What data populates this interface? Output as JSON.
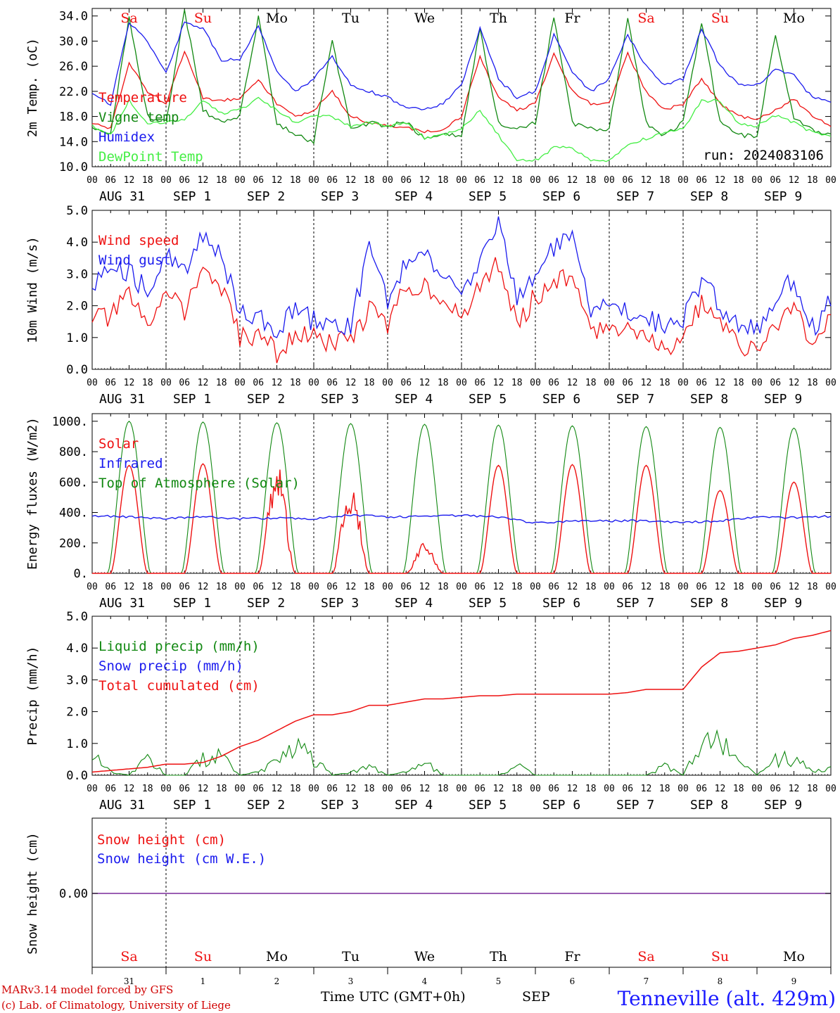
{
  "colors": {
    "red": "#ee1111",
    "blue": "#1a1aee",
    "green": "#118811",
    "lightgreen": "#44ee44",
    "weekend": "#ee1111",
    "weekday": "#000000",
    "purple": "#7a2a9a"
  },
  "x_axis": {
    "hours": [
      "00",
      "06",
      "12",
      "18"
    ],
    "last_hour": "00",
    "dates": [
      "AUG 31",
      "SEP  1",
      "SEP  2",
      "SEP  3",
      "SEP  4",
      "SEP  5",
      "SEP  6",
      "SEP  7",
      "SEP  8",
      "SEP  9"
    ],
    "weekdays": [
      "Sa",
      "Su",
      "Mo",
      "Tu",
      "We",
      "Th",
      "Fr",
      "Sa",
      "Su",
      "Mo"
    ],
    "weekend_flags": [
      true,
      true,
      false,
      false,
      false,
      false,
      false,
      true,
      true,
      false
    ],
    "day_numbers": [
      "31",
      "1",
      "2",
      "3",
      "4",
      "5",
      "6",
      "7",
      "8",
      "9"
    ],
    "title": "Time UTC (GMT+0h)",
    "month": "SEP"
  },
  "footer": {
    "model": "MARv3.14 model forced by GFS",
    "credit": "(c) Lab. of Climatology, University of Liege",
    "location": "Tenneville (alt. 429m)"
  },
  "chart_data": [
    {
      "type": "line",
      "ylabel": "2m Temp. (oC)",
      "ylim": [
        10,
        35.2
      ],
      "yticks": [
        "10.0",
        "14.0",
        "18.0",
        "22.0",
        "26.0",
        "30.0",
        "34.0"
      ],
      "run_label": "run: 2024083106",
      "x_hours": [
        0,
        6,
        12,
        18,
        24,
        30,
        36,
        42,
        48,
        54,
        60,
        66,
        72,
        78,
        84,
        90,
        96,
        102,
        108,
        114,
        120,
        126,
        132,
        138,
        144,
        150,
        156,
        162,
        168,
        174,
        180,
        186,
        192,
        198,
        204,
        210,
        216,
        222,
        228,
        234,
        240
      ],
      "series": [
        {
          "name": "Temperature",
          "color": "red",
          "values": [
            17,
            16,
            26.5,
            22,
            20,
            28.5,
            21,
            20.5,
            21,
            24,
            20,
            18,
            19,
            22,
            18,
            17,
            16.5,
            16.2,
            15.5,
            16,
            18,
            27.5,
            21,
            19,
            20,
            28,
            22,
            20,
            20,
            28,
            22,
            19,
            20,
            24,
            20,
            18,
            17.5,
            19,
            20.8,
            18,
            16.5
          ]
        },
        {
          "name": "Vigne temp",
          "color": "green",
          "values": [
            16,
            15,
            34,
            18,
            17,
            35,
            19,
            17,
            18,
            34,
            17,
            15,
            14,
            30,
            16,
            17,
            16.5,
            17,
            14.5,
            15,
            15,
            32,
            17,
            16,
            17,
            34,
            17,
            16,
            16,
            34,
            17,
            15,
            17,
            33,
            17,
            15,
            15,
            30.8,
            18,
            16,
            15
          ]
        },
        {
          "name": "Humidex",
          "color": "blue",
          "values": [
            21.5,
            20,
            33,
            30,
            25,
            33,
            32,
            27,
            27,
            32.5,
            25,
            22,
            24,
            27.5,
            23,
            22,
            21,
            19.5,
            19,
            20,
            23,
            32,
            24,
            21,
            22,
            31,
            25,
            22,
            24,
            31,
            26,
            23,
            24,
            32,
            26,
            23,
            23,
            25.5,
            24.5,
            21,
            20.5
          ]
        },
        {
          "name": "DewPoint Temp",
          "color": "lightgreen",
          "values": [
            16.5,
            15,
            20.5,
            17,
            17,
            17.5,
            20.5,
            18.5,
            19,
            21,
            19,
            17,
            18,
            18,
            16.5,
            17,
            16.5,
            17,
            14.5,
            15,
            16,
            19,
            15,
            11,
            11,
            13,
            13,
            11,
            11,
            13.5,
            14.5,
            15.5,
            16,
            20.5,
            20.5,
            17,
            16.5,
            18.2,
            17,
            15.5,
            15
          ]
        }
      ]
    },
    {
      "type": "line",
      "ylabel": "10m Wind (m/s)",
      "ylim": [
        0,
        5
      ],
      "yticks": [
        "0.0",
        "1.0",
        "2.0",
        "3.0",
        "4.0",
        "5.0"
      ],
      "x_hours": [
        0,
        6,
        12,
        18,
        24,
        30,
        36,
        42,
        48,
        54,
        60,
        66,
        72,
        78,
        84,
        90,
        96,
        102,
        108,
        114,
        120,
        126,
        132,
        138,
        144,
        150,
        156,
        162,
        168,
        174,
        180,
        186,
        192,
        198,
        204,
        210,
        216,
        222,
        228,
        234,
        240
      ],
      "series": [
        {
          "name": "Wind speed",
          "color": "red",
          "values": [
            1.7,
            1.6,
            2.4,
            1.2,
            2.7,
            1.8,
            3.2,
            2.5,
            1.0,
            1.1,
            0.5,
            1.1,
            1.0,
            0.8,
            0.9,
            1.9,
            1.4,
            2.6,
            2.7,
            2.2,
            1.5,
            2.6,
            3.4,
            1.4,
            2.3,
            2.8,
            2.9,
            1.1,
            1.4,
            1.3,
            1.2,
            0.6,
            1.0,
            2.1,
            1.4,
            0.8,
            0.5,
            1.4,
            2.1,
            0.7,
            1.5
          ]
        },
        {
          "name": "Wind gust",
          "color": "blue",
          "values": [
            2.5,
            3.5,
            3.0,
            2.5,
            3.6,
            3.0,
            4.3,
            3.6,
            1.7,
            1.6,
            1.2,
            1.9,
            1.5,
            1.4,
            1.4,
            3.8,
            2.2,
            3.3,
            3.6,
            3.1,
            2.1,
            3.6,
            4.6,
            2.2,
            3.0,
            3.8,
            4.1,
            1.8,
            2.0,
            1.9,
            1.7,
            1.3,
            1.6,
            2.8,
            2.0,
            1.3,
            1.2,
            2.1,
            2.9,
            1.3,
            2.1
          ]
        }
      ]
    },
    {
      "type": "line",
      "ylabel": "Energy fluxes (W/m2)",
      "ylim": [
        0,
        1050
      ],
      "yticks": [
        "0.",
        "200.",
        "400.",
        "600.",
        "800.",
        "1000."
      ],
      "legend_order": [
        "Solar",
        "Infrared",
        "Top of Atmosphere (Solar)"
      ],
      "series": [
        {
          "name": "Solar",
          "color": "red",
          "day_peaks": [
            710,
            720,
            620,
            500,
            160,
            710,
            715,
            710,
            545,
            600
          ],
          "day_notes": "daily peaks near 12 UTC"
        },
        {
          "name": "Infrared",
          "color": "blue",
          "x_hours": [
            0,
            12,
            24,
            36,
            48,
            60,
            72,
            84,
            96,
            108,
            120,
            132,
            144,
            156,
            168,
            180,
            192,
            204,
            216,
            228,
            240
          ],
          "values": [
            380,
            370,
            360,
            370,
            360,
            365,
            360,
            385,
            370,
            375,
            380,
            370,
            330,
            345,
            345,
            345,
            335,
            345,
            370,
            365,
            375
          ]
        },
        {
          "name": "Top of Atmosphere (Solar)",
          "color": "green",
          "day_peaks": [
            1000,
            995,
            990,
            985,
            980,
            975,
            970,
            965,
            960,
            955
          ]
        }
      ]
    },
    {
      "type": "line",
      "ylabel": "Precip (mm/h)",
      "ylim": [
        0,
        5
      ],
      "yticks": [
        "0.0",
        "1.0",
        "2.0",
        "3.0",
        "4.0",
        "5.0"
      ],
      "series": [
        {
          "name": "Liquid precip (mm/h)",
          "color": "green",
          "x_hours": [
            0,
            6,
            12,
            18,
            24,
            30,
            36,
            42,
            48,
            54,
            60,
            66,
            72,
            78,
            84,
            90,
            96,
            102,
            108,
            114,
            120,
            126,
            132,
            138,
            144,
            150,
            156,
            162,
            168,
            174,
            180,
            186,
            192,
            198,
            204,
            210,
            216,
            222,
            228,
            234,
            240
          ],
          "values": [
            0.7,
            0.1,
            0,
            0.5,
            0,
            0,
            0.5,
            0.6,
            0,
            0.1,
            0.4,
            0.9,
            0.5,
            0,
            0.1,
            0.3,
            0,
            0.1,
            0.4,
            0,
            0,
            0,
            0,
            0.3,
            0,
            0,
            0,
            0,
            0,
            0,
            0,
            0.3,
            0,
            0.9,
            1.0,
            0.4,
            0,
            0.5,
            0.5,
            0.1,
            0.2
          ]
        },
        {
          "name": "Snow precip (mm/h)",
          "color": "blue",
          "values": []
        },
        {
          "name": "Total cumulated (cm)",
          "color": "red",
          "x_hours": [
            0,
            6,
            12,
            18,
            24,
            30,
            36,
            42,
            48,
            54,
            60,
            66,
            72,
            78,
            84,
            90,
            96,
            102,
            108,
            114,
            120,
            126,
            132,
            138,
            144,
            150,
            156,
            162,
            168,
            174,
            180,
            186,
            192,
            198,
            204,
            210,
            216,
            222,
            228,
            234,
            240
          ],
          "values": [
            0.1,
            0.15,
            0.2,
            0.25,
            0.35,
            0.35,
            0.4,
            0.6,
            0.9,
            1.1,
            1.4,
            1.7,
            1.9,
            1.9,
            2.0,
            2.2,
            2.2,
            2.3,
            2.4,
            2.4,
            2.45,
            2.5,
            2.5,
            2.55,
            2.55,
            2.55,
            2.55,
            2.55,
            2.55,
            2.6,
            2.7,
            2.7,
            2.7,
            3.4,
            3.85,
            3.9,
            4.0,
            4.1,
            4.3,
            4.4,
            4.55
          ]
        }
      ]
    },
    {
      "type": "line",
      "ylabel": "Snow height (cm)",
      "yticks": [
        "0.00"
      ],
      "series": [
        {
          "name": "Snow height (cm)",
          "color": "red",
          "values": [
            0
          ]
        },
        {
          "name": "Snow height (cm W.E.)",
          "color": "blue",
          "values": [
            0
          ]
        }
      ]
    }
  ]
}
